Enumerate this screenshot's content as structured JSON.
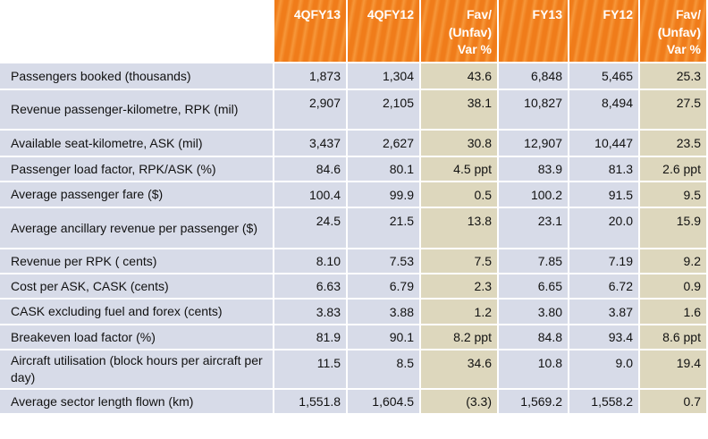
{
  "header": {
    "col1": "4QFY13",
    "col2": "4QFY12",
    "col3": [
      "Fav/",
      "(Unfav)",
      "Var %"
    ],
    "col4": "FY13",
    "col5": "FY12",
    "col6": [
      "Fav/",
      "(Unfav)",
      "Var %"
    ]
  },
  "rows": [
    {
      "label": "Passengers booked (thousands)",
      "v": [
        "1,873",
        "1,304",
        "43.6",
        "6,848",
        "5,465",
        "25.3"
      ]
    },
    {
      "label": "Revenue passenger-kilometre, RPK (mil)",
      "v": [
        "2,907",
        "2,105",
        "38.1",
        "10,827",
        "8,494",
        "27.5"
      ]
    },
    {
      "label": "Available seat-kilometre, ASK (mil)",
      "v": [
        "3,437",
        "2,627",
        "30.8",
        "12,907",
        "10,447",
        "23.5"
      ]
    },
    {
      "label": "Passenger load factor, RPK/ASK (%)",
      "v": [
        "84.6",
        "80.1",
        "4.5 ppt",
        "83.9",
        "81.3",
        "2.6 ppt"
      ]
    },
    {
      "label": "Average passenger fare ($)",
      "v": [
        "100.4",
        "99.9",
        "0.5",
        "100.2",
        "91.5",
        "9.5"
      ]
    },
    {
      "label": "Average ancillary revenue per passenger ($)",
      "v": [
        "24.5",
        "21.5",
        "13.8",
        "23.1",
        "20.0",
        "15.9"
      ]
    },
    {
      "label": "Revenue per RPK ( cents)",
      "v": [
        "8.10",
        "7.53",
        "7.5",
        "7.85",
        "7.19",
        "9.2"
      ]
    },
    {
      "label": "Cost per ASK, CASK (cents)",
      "v": [
        "6.63",
        "6.79",
        "2.3",
        "6.65",
        "6.72",
        "0.9"
      ]
    },
    {
      "label": "CASK excluding fuel and forex (cents)",
      "v": [
        "3.83",
        "3.88",
        "1.2",
        "3.80",
        "3.87",
        "1.6"
      ]
    },
    {
      "label": "Breakeven load factor (%)",
      "v": [
        "81.9",
        "90.1",
        "8.2 ppt",
        "84.8",
        "93.4",
        "8.6 ppt"
      ]
    },
    {
      "label": "Aircraft utilisation (block hours per aircraft per day)",
      "v": [
        "11.5",
        "8.5",
        "34.6",
        "10.8",
        "9.0",
        "19.4"
      ]
    },
    {
      "label": "Average sector length flown (km)",
      "v": [
        "1,551.8",
        "1,604.5",
        "(3.3)",
        "1,569.2",
        "1,558.2",
        "0.7"
      ]
    }
  ],
  "colors": {
    "header_orange": "#f07c1a",
    "row_blue": "#d7dbe8",
    "var_tan": "#ddd7bd"
  }
}
